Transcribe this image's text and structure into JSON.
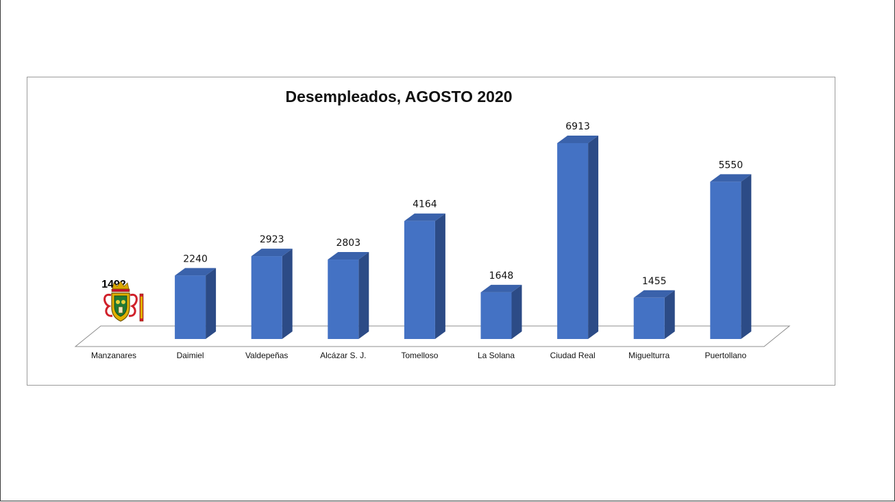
{
  "chart_data": {
    "type": "bar",
    "style": "3d-column",
    "title": "Desempleados, AGOSTO 2020",
    "xlabel": "",
    "ylabel": "",
    "categories": [
      "Manzanares",
      "Daimiel",
      "Valdepeñas",
      "Alcázar S. J.",
      "Tomelloso",
      "La Solana",
      "Ciudad Real",
      "Miguelturra",
      "Puertollano"
    ],
    "values": [
      1492,
      2240,
      2923,
      2803,
      4164,
      1648,
      6913,
      1455,
      5550
    ],
    "value_labels": [
      "1492",
      "2240",
      "2923",
      "2803",
      "4164",
      "1648",
      "6913",
      "1455",
      "5550"
    ],
    "bar_colors": {
      "front": "#4472C4",
      "side": "#2C4B86",
      "top": "#3A62AB"
    },
    "floor_color": "#ffffff",
    "grid": false,
    "legend": "none",
    "special_marker": {
      "category": "Manzanares",
      "icon": "coat-of-arms-icon",
      "replaces_bar": true
    }
  }
}
